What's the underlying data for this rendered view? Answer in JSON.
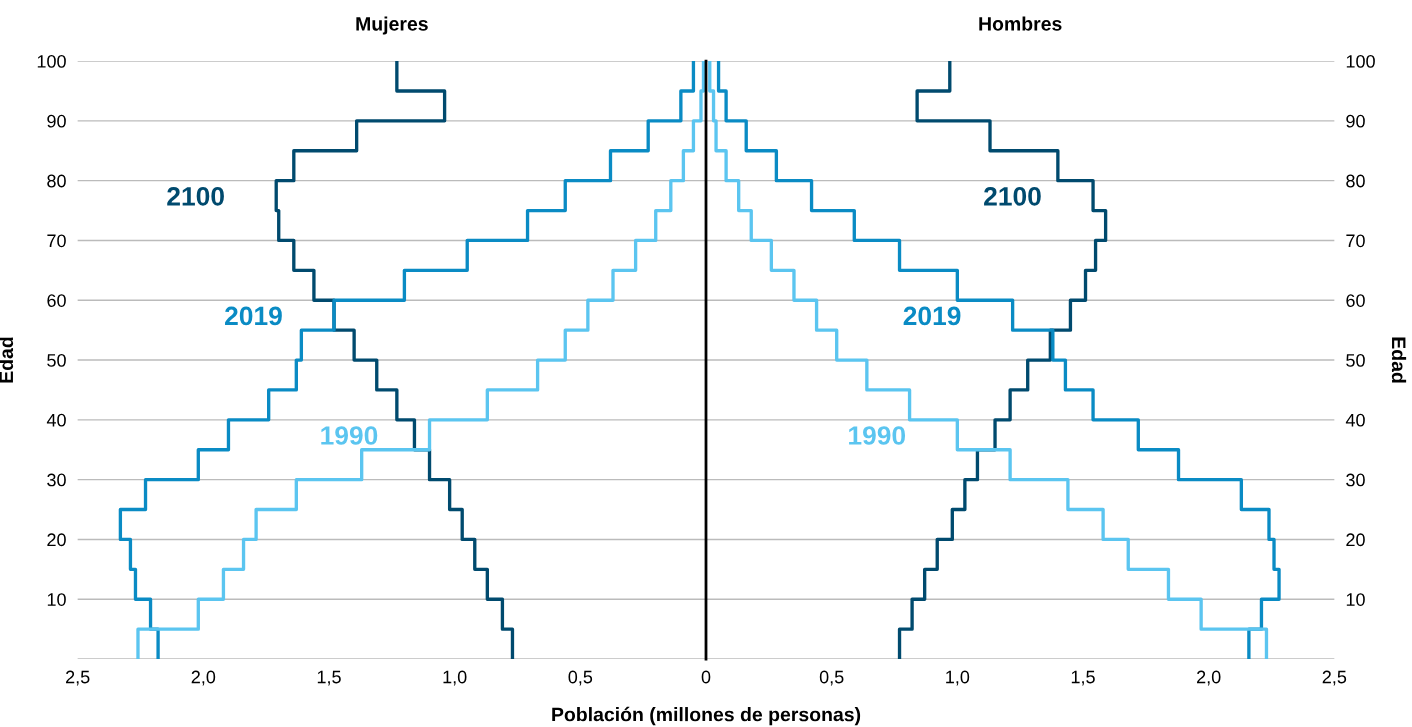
{
  "chart_data": [
    {
      "type": "histogram",
      "orientation": "horizontal",
      "title": "Mujeres",
      "xlabel": "Población (millones de personas)",
      "ylabel": "Edad",
      "bins": [
        0,
        5,
        10,
        15,
        20,
        25,
        30,
        35,
        40,
        45,
        50,
        55,
        60,
        65,
        70,
        75,
        80,
        85,
        90,
        95,
        100
      ],
      "series": [
        {
          "name": "2100",
          "color": "#004a6e",
          "values": [
            0.77,
            0.81,
            0.87,
            0.92,
            0.97,
            1.02,
            1.1,
            1.16,
            1.23,
            1.31,
            1.4,
            1.48,
            1.56,
            1.64,
            1.7,
            1.71,
            1.64,
            1.39,
            1.04,
            1.23
          ]
        },
        {
          "name": "2019",
          "color": "#0a8bc4",
          "values": [
            2.18,
            2.21,
            2.27,
            2.29,
            2.33,
            2.23,
            2.02,
            1.9,
            1.74,
            1.63,
            1.61,
            1.48,
            1.2,
            0.95,
            0.71,
            0.56,
            0.38,
            0.23,
            0.1,
            0.05
          ]
        },
        {
          "name": "1990",
          "color": "#5bc5f0",
          "values": [
            2.26,
            2.02,
            1.92,
            1.84,
            1.79,
            1.63,
            1.37,
            1.1,
            0.87,
            0.67,
            0.56,
            0.47,
            0.37,
            0.28,
            0.2,
            0.14,
            0.09,
            0.05,
            0.02,
            0.01
          ]
        }
      ],
      "xlim": [
        2.5,
        0
      ],
      "xticks": [
        {
          "value": 2.5,
          "label": "2,5"
        },
        {
          "value": 2.0,
          "label": "2,0"
        },
        {
          "value": 1.5,
          "label": "1,5"
        },
        {
          "value": 1.0,
          "label": "1,0"
        },
        {
          "value": 0.5,
          "label": "0,5"
        },
        {
          "value": 0,
          "label": null
        }
      ],
      "ylim": [
        0,
        100
      ],
      "yticks": [
        {
          "value": 0,
          "label": null
        },
        10,
        20,
        30,
        40,
        50,
        60,
        70,
        80,
        90,
        100
      ],
      "grid": "y"
    },
    {
      "type": "histogram",
      "orientation": "horizontal",
      "title": "Hombres",
      "ylabel": "Edad",
      "bins": [
        0,
        5,
        10,
        15,
        20,
        25,
        30,
        35,
        40,
        45,
        50,
        55,
        60,
        65,
        70,
        75,
        80,
        85,
        90,
        95,
        100
      ],
      "series": [
        {
          "name": "2100",
          "color": "#004a6e",
          "values": [
            0.77,
            0.82,
            0.87,
            0.92,
            0.98,
            1.03,
            1.08,
            1.15,
            1.21,
            1.28,
            1.37,
            1.45,
            1.51,
            1.55,
            1.59,
            1.54,
            1.4,
            1.13,
            0.84,
            0.97
          ]
        },
        {
          "name": "2019",
          "color": "#0a8bc4",
          "values": [
            2.16,
            2.21,
            2.28,
            2.26,
            2.24,
            2.13,
            1.88,
            1.72,
            1.54,
            1.43,
            1.38,
            1.22,
            1.0,
            0.77,
            0.59,
            0.42,
            0.28,
            0.16,
            0.08,
            0.05
          ]
        },
        {
          "name": "1990",
          "color": "#5bc5f0",
          "values": [
            2.23,
            1.97,
            1.84,
            1.68,
            1.58,
            1.44,
            1.21,
            1.0,
            0.81,
            0.64,
            0.52,
            0.44,
            0.35,
            0.26,
            0.18,
            0.13,
            0.08,
            0.04,
            0.03,
            0.015
          ]
        }
      ],
      "xlim": [
        0,
        2.5
      ],
      "xticks": [
        0,
        {
          "value": 0.5,
          "label": "0,5"
        },
        {
          "value": 1.0,
          "label": "1,0"
        },
        {
          "value": 1.5,
          "label": "1,5"
        },
        {
          "value": 2.0,
          "label": "2,0"
        },
        {
          "value": 2.5,
          "label": "2,5"
        }
      ],
      "ylim": [
        0,
        100
      ],
      "yticks": [
        {
          "value": 0,
          "label": null
        },
        10,
        20,
        30,
        40,
        50,
        60,
        70,
        80,
        90,
        100
      ],
      "grid": "y"
    }
  ]
}
